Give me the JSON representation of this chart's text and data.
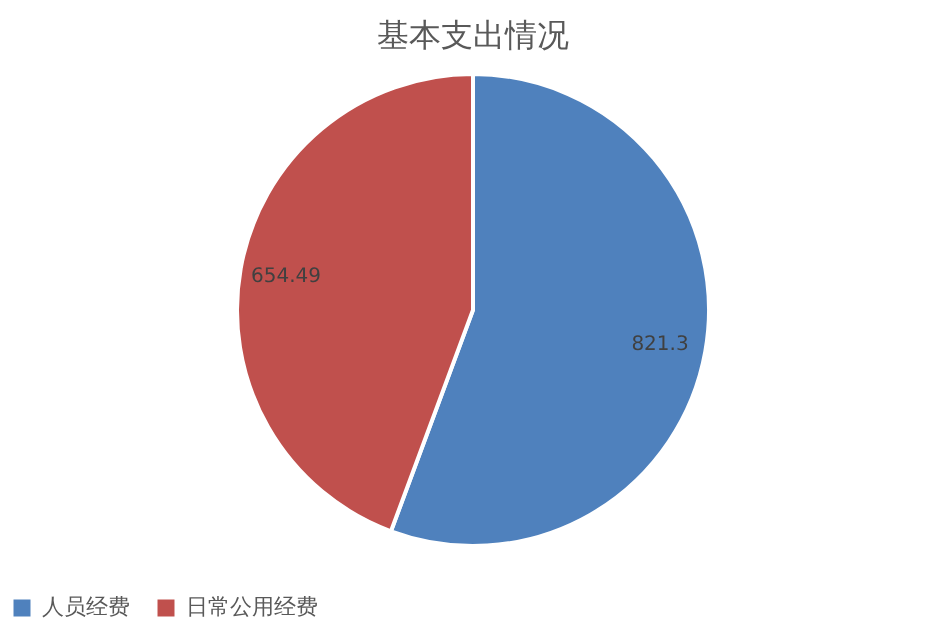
{
  "chart_data": {
    "type": "pie",
    "title": "基本支出情况",
    "categories": [
      "人员经费",
      "日常公用经费"
    ],
    "values": [
      821.3,
      654.49
    ],
    "colors": [
      "#4f81bd",
      "#c0504d"
    ],
    "data_labels": true,
    "legend": "bottom"
  }
}
